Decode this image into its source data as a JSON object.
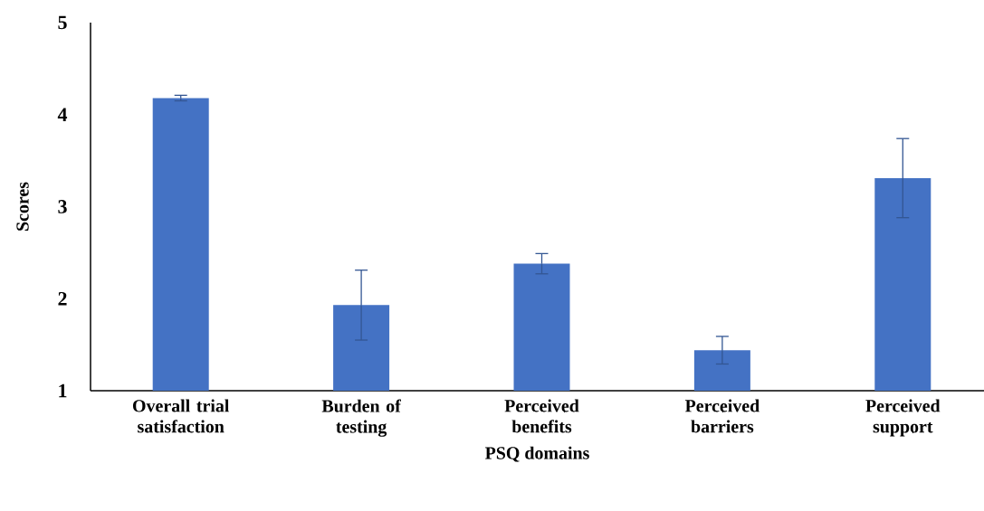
{
  "chart_data": {
    "type": "bar",
    "xlabel": "PSQ domains",
    "ylabel": "Scores",
    "categories": [
      "Overall trial satisfaction",
      "Burden of testing",
      "Perceived benefits",
      "Perceived barriers",
      "Perceived support"
    ],
    "values": [
      4.18,
      1.93,
      2.38,
      1.44,
      3.31
    ],
    "errors": [
      0.03,
      0.38,
      0.11,
      0.15,
      0.43
    ],
    "color": "#4472c4",
    "ylim": [
      1,
      5
    ],
    "yticks": [
      1,
      2,
      3,
      4,
      5
    ],
    "grid": false
  }
}
